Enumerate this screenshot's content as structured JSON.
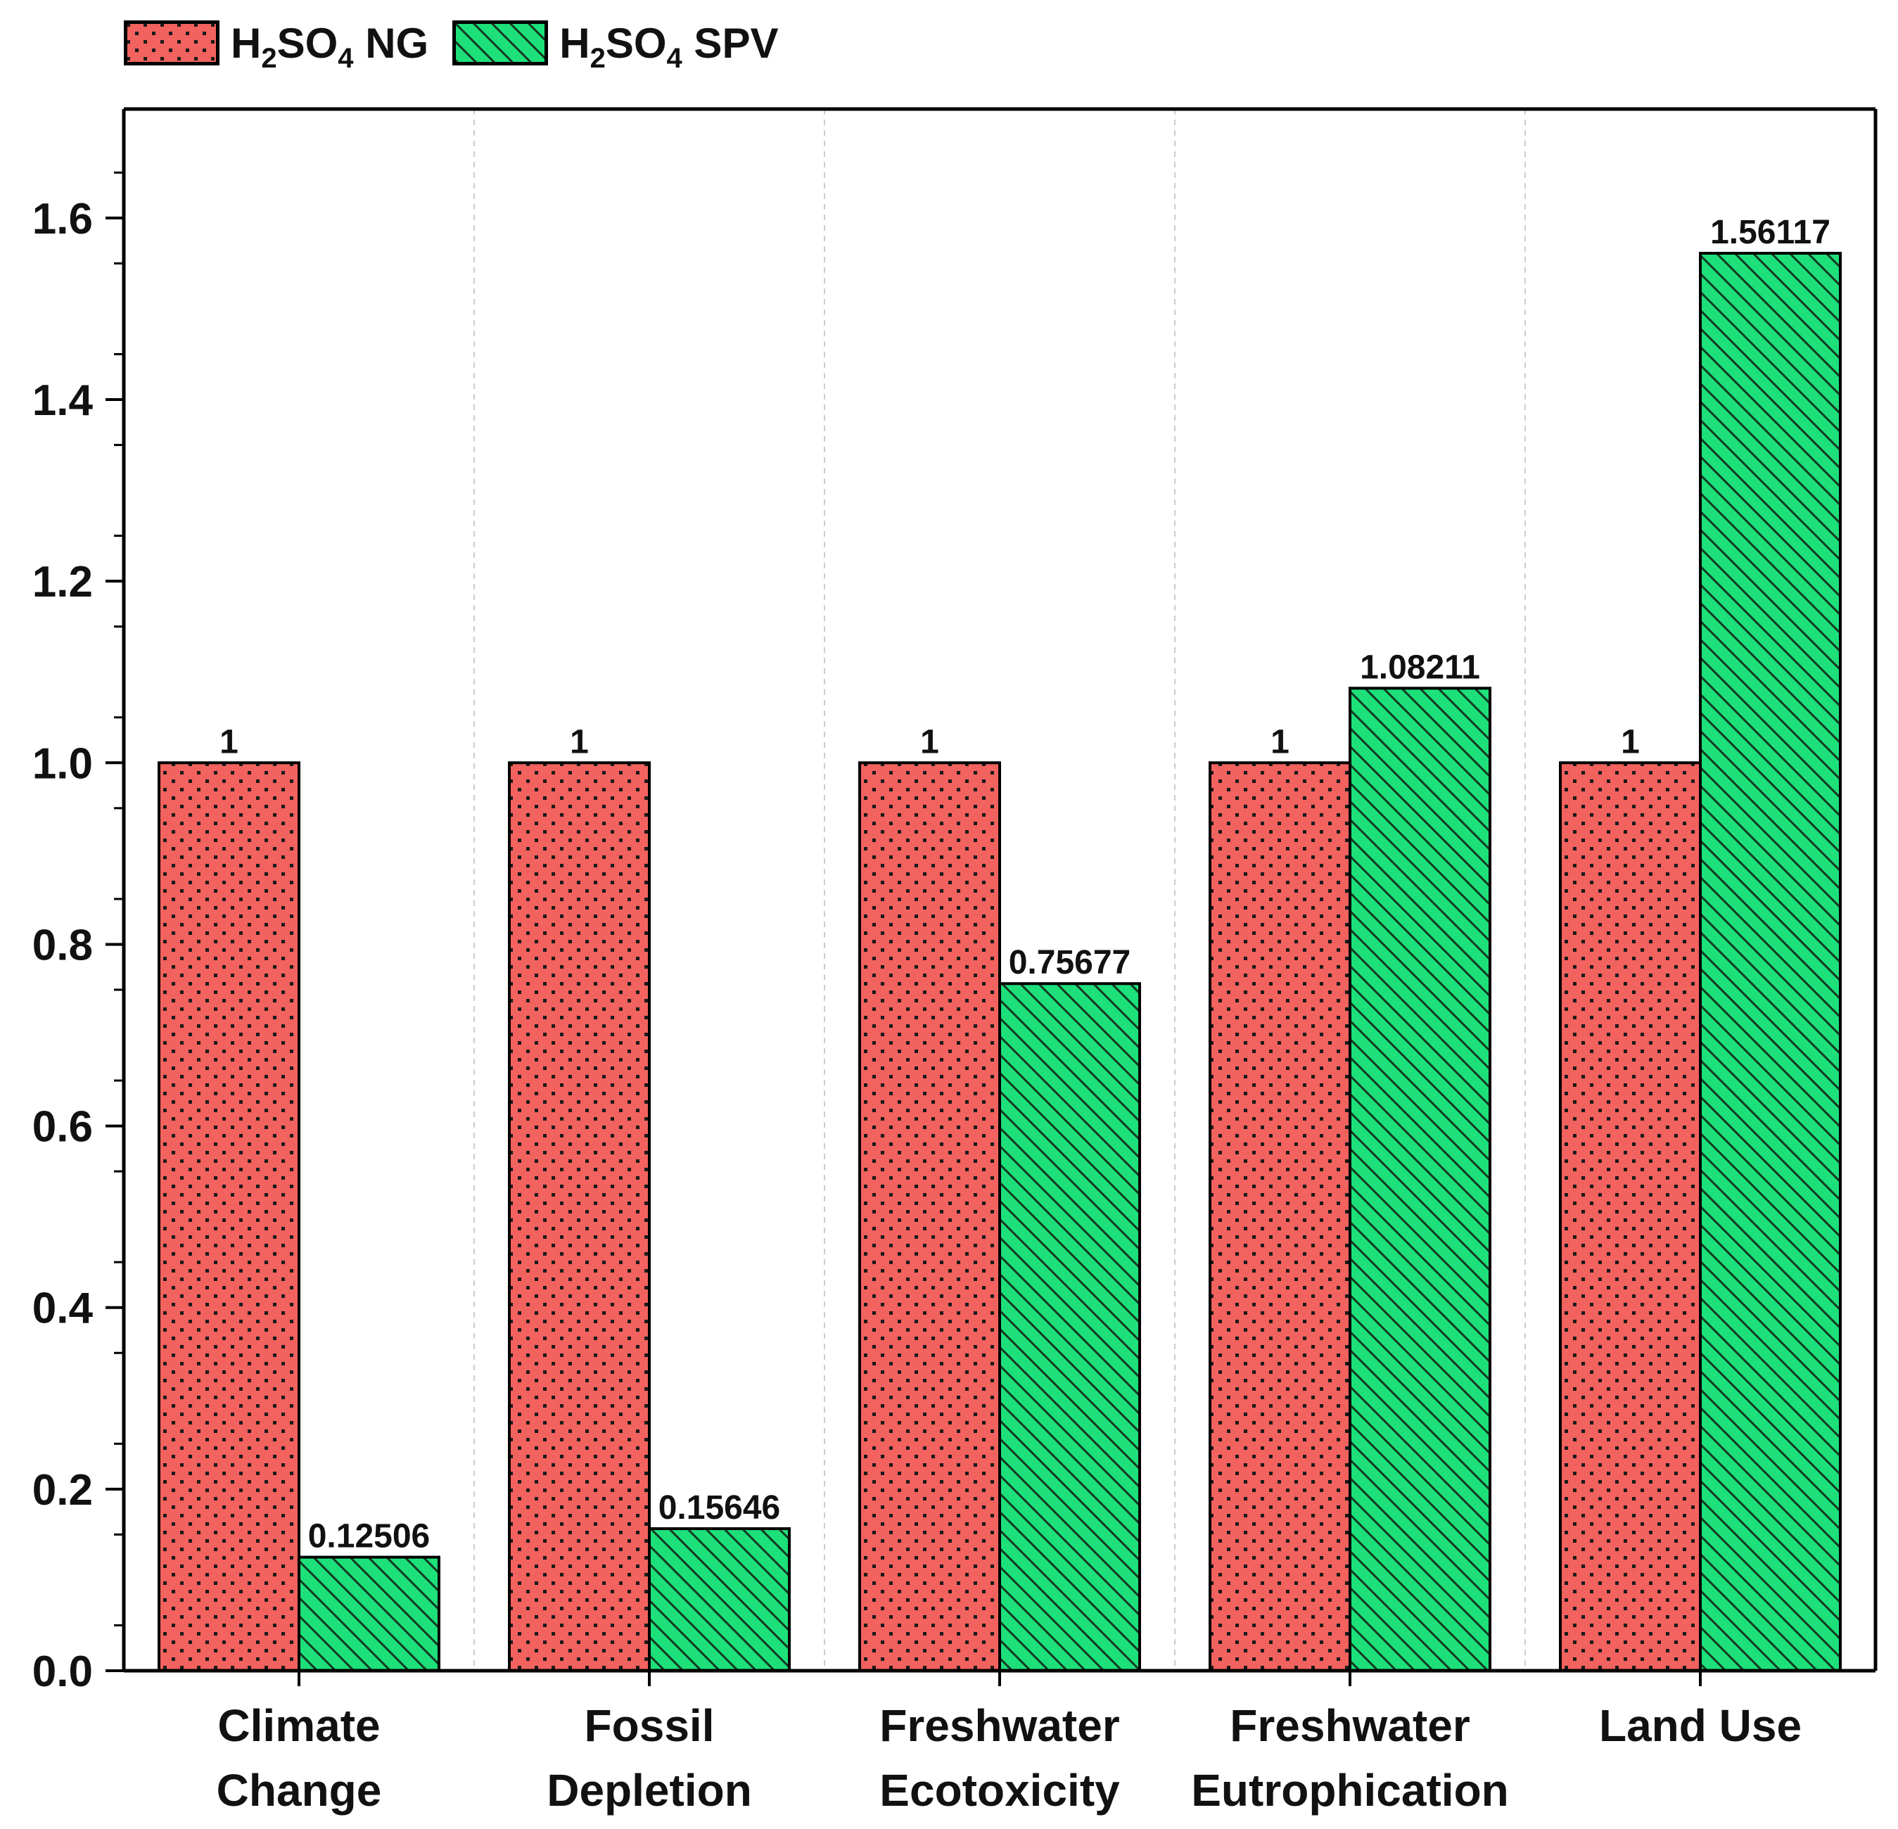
{
  "chart_data": {
    "type": "bar",
    "title": "",
    "xlabel": "",
    "ylabel": "",
    "ylim": [
      0,
      1.72
    ],
    "y_ticks": [
      "0.0",
      "0.2",
      "0.4",
      "0.6",
      "0.8",
      "1.0",
      "1.2",
      "1.4",
      "1.6"
    ],
    "y_tick_values": [
      0,
      0.2,
      0.4,
      0.6,
      0.8,
      1.0,
      1.2,
      1.4,
      1.6
    ],
    "grid": "vertical dashed",
    "legend_position": "top-left, outside plot",
    "categories": [
      {
        "line1": "Climate",
        "line2": "Change"
      },
      {
        "line1": "Fossil",
        "line2": "Depletion"
      },
      {
        "line1": "Freshwater",
        "line2": "Ecotoxicity"
      },
      {
        "line1": "Freshwater",
        "line2": "Eutrophication"
      },
      {
        "line1": "Land Use",
        "line2": ""
      }
    ],
    "series": [
      {
        "name": "H2SO4 NG",
        "legend": {
          "a": "H",
          "sub1": "2",
          "b": "SO",
          "sub2": "4",
          "c": " NG"
        },
        "color": "#f2625e",
        "pattern": "dots",
        "values": [
          1,
          1,
          1,
          1,
          1
        ],
        "labels": [
          "1",
          "1",
          "1",
          "1",
          "1"
        ]
      },
      {
        "name": "H2SO4 SPV",
        "legend": {
          "a": "H",
          "sub1": "2",
          "b": "SO",
          "sub2": "4",
          "c": " SPV"
        },
        "color": "#1ee07a",
        "pattern": "diagonal-hatch",
        "values": [
          0.12506,
          0.15646,
          0.75677,
          1.08211,
          1.56117
        ],
        "labels": [
          "0.12506",
          "0.15646",
          "0.75677",
          "1.08211",
          "1.56117"
        ]
      }
    ]
  }
}
